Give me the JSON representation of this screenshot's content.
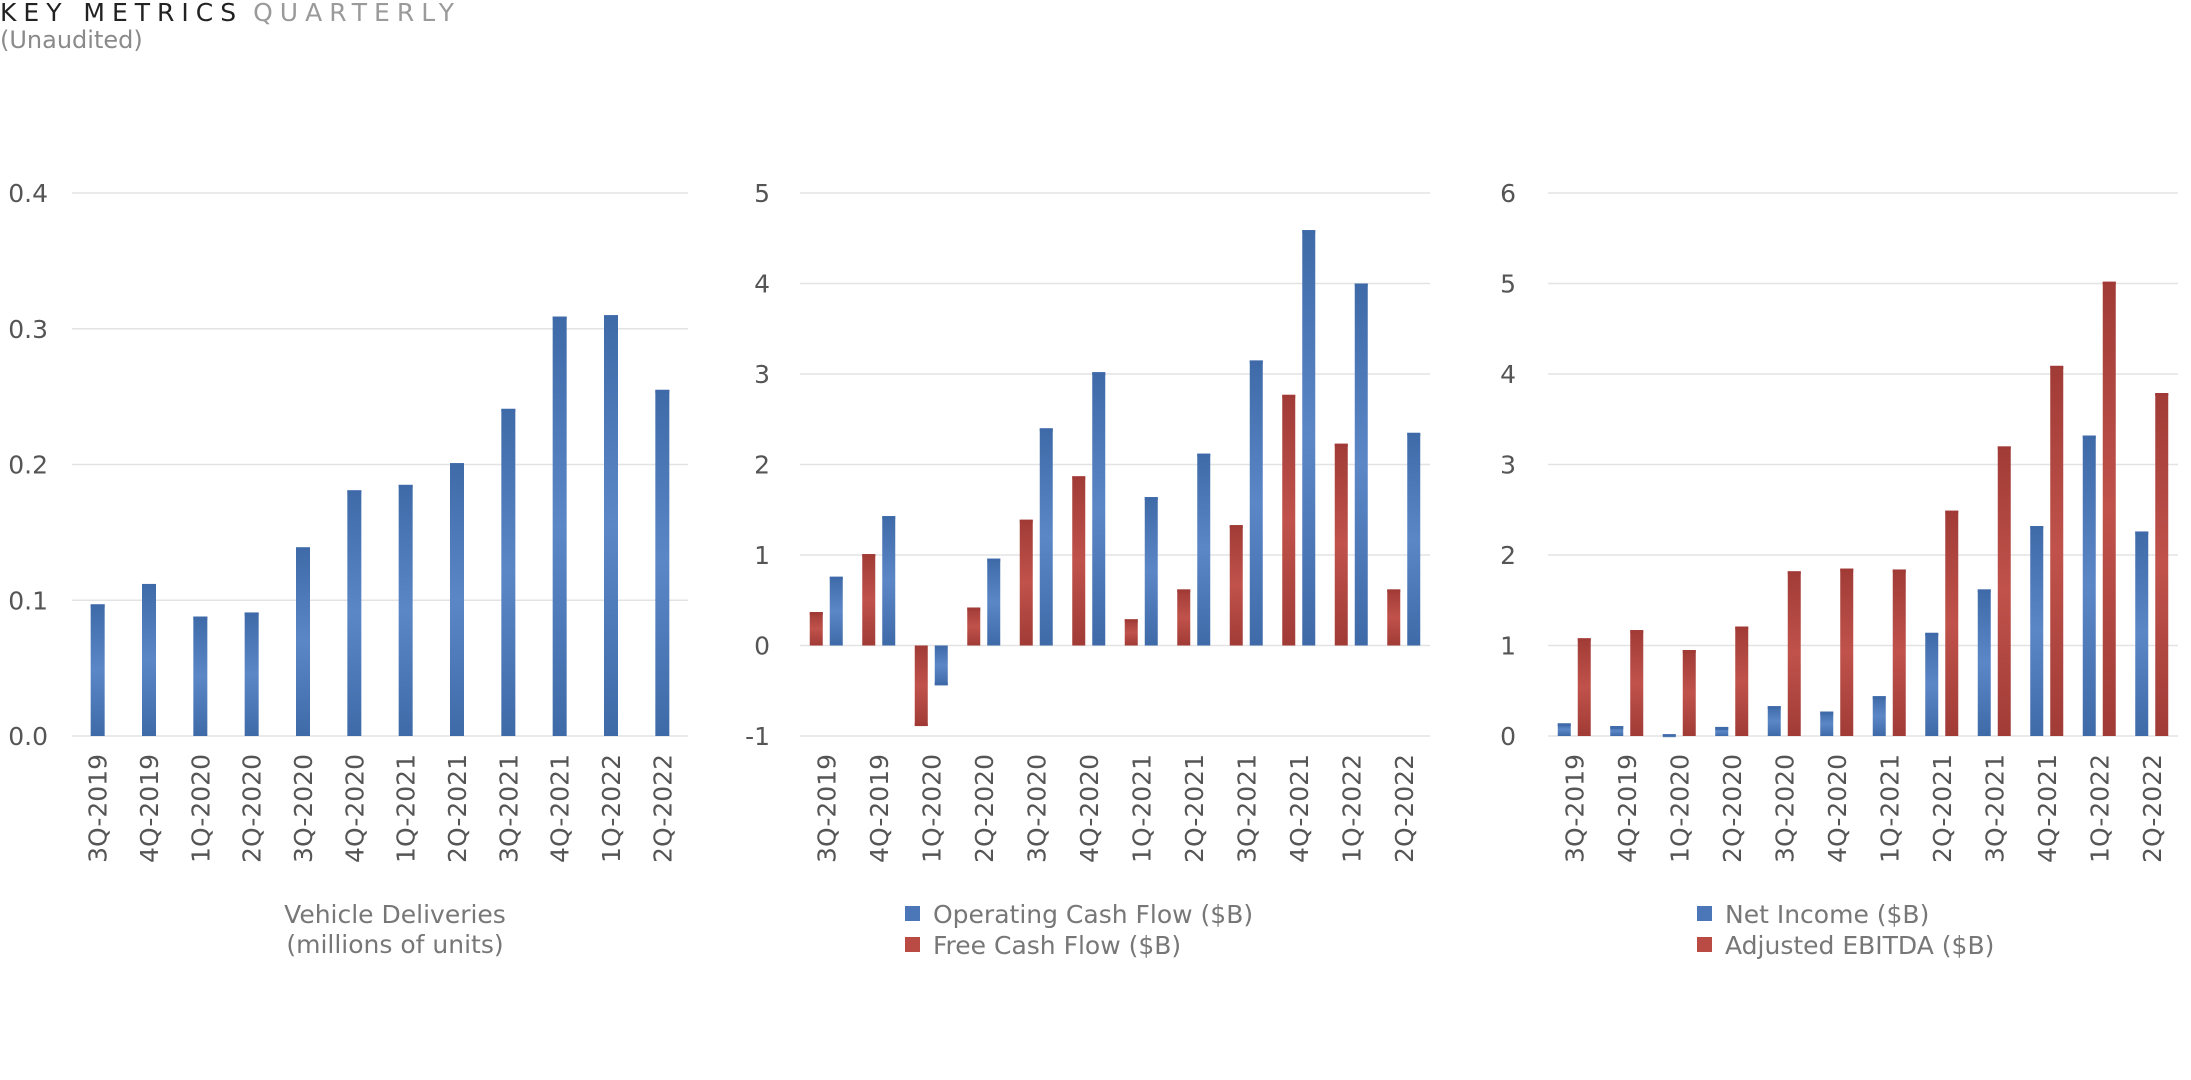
{
  "header": {
    "title_main": "KEY METRICS",
    "title_sub": "QUARTERLY",
    "subtitle": "(Unaudited)"
  },
  "chart_data": [
    {
      "type": "bar",
      "categories": [
        "3Q-2019",
        "4Q-2019",
        "1Q-2020",
        "2Q-2020",
        "3Q-2020",
        "4Q-2020",
        "1Q-2021",
        "2Q-2021",
        "3Q-2021",
        "4Q-2021",
        "1Q-2022",
        "2Q-2022"
      ],
      "series": [
        {
          "values": [
            0.097,
            0.112,
            0.088,
            0.091,
            0.139,
            0.181,
            0.185,
            0.201,
            0.241,
            0.309,
            0.31,
            0.255
          ],
          "color": "#3f6aa8"
        }
      ],
      "ylim": [
        0,
        0.4
      ],
      "yticks": [
        "0.0",
        "0.1",
        "0.2",
        "0.3",
        "0.4"
      ],
      "ytick_values": [
        0,
        0.1,
        0.2,
        0.3,
        0.4
      ],
      "caption": [
        "Vehicle Deliveries",
        "(millions of units)"
      ],
      "legend": []
    },
    {
      "type": "bar",
      "categories": [
        "3Q-2019",
        "4Q-2019",
        "1Q-2020",
        "2Q-2020",
        "3Q-2020",
        "4Q-2020",
        "1Q-2021",
        "2Q-2021",
        "3Q-2021",
        "4Q-2021",
        "1Q-2022",
        "2Q-2022"
      ],
      "series": [
        {
          "name": "Free Cash Flow ($B)",
          "values": [
            0.37,
            1.01,
            -0.89,
            0.42,
            1.39,
            1.87,
            0.29,
            0.62,
            1.33,
            2.77,
            2.23,
            0.62
          ],
          "color": "#a13b36"
        },
        {
          "name": "Operating Cash Flow ($B)",
          "values": [
            0.76,
            1.43,
            -0.44,
            0.96,
            2.4,
            3.02,
            1.64,
            2.12,
            3.15,
            4.59,
            4.0,
            2.35
          ],
          "color": "#3f6aa8"
        }
      ],
      "ylim": [
        -1,
        5
      ],
      "yticks": [
        "-1",
        "0",
        "1",
        "2",
        "3",
        "4",
        "5"
      ],
      "ytick_values": [
        -1,
        0,
        1,
        2,
        3,
        4,
        5
      ],
      "legend": [
        {
          "label": "Operating Cash Flow ($B)",
          "color": "#4b77b9"
        },
        {
          "label": "Free Cash Flow ($B)",
          "color": "#b94a44"
        }
      ]
    },
    {
      "type": "bar",
      "categories": [
        "3Q-2019",
        "4Q-2019",
        "1Q-2020",
        "2Q-2020",
        "3Q-2020",
        "4Q-2020",
        "1Q-2021",
        "2Q-2021",
        "3Q-2021",
        "4Q-2021",
        "1Q-2022",
        "2Q-2022"
      ],
      "series": [
        {
          "name": "Net Income ($B)",
          "values": [
            0.14,
            0.11,
            0.02,
            0.1,
            0.33,
            0.27,
            0.44,
            1.14,
            1.62,
            2.32,
            3.32,
            2.26
          ],
          "color": "#3f6aa8"
        },
        {
          "name": "Adjusted EBITDA ($B)",
          "values": [
            1.08,
            1.17,
            0.95,
            1.21,
            1.82,
            1.85,
            1.84,
            2.49,
            3.2,
            4.09,
            5.02,
            3.79
          ],
          "color": "#a13b36"
        }
      ],
      "ylim": [
        0,
        6
      ],
      "yticks": [
        "0",
        "1",
        "2",
        "3",
        "4",
        "5",
        "6"
      ],
      "ytick_values": [
        0,
        1,
        2,
        3,
        4,
        5,
        6
      ],
      "legend": [
        {
          "label": "Net Income ($B)",
          "color": "#4b77b9"
        },
        {
          "label": "Adjusted EBITDA ($B)",
          "color": "#b94a44"
        }
      ]
    }
  ]
}
